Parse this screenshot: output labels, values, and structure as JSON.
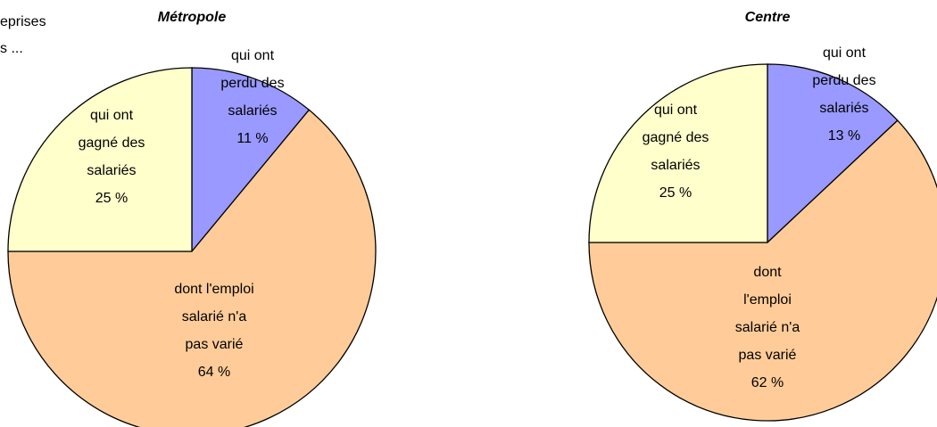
{
  "header": [
    "eprises",
    "s ..."
  ],
  "chart_data": [
    {
      "type": "pie",
      "title": "Métropole",
      "labels": [
        [
          "qui ont",
          "perdu des",
          "salariés"
        ],
        [
          "dont l'emploi",
          "salarié n'a",
          "pas varié"
        ],
        [
          "qui ont",
          "gagné des",
          "salariés"
        ]
      ],
      "values": [
        11,
        64,
        25
      ],
      "value_labels": [
        "11 %",
        "64 %",
        "25 %"
      ],
      "colors": [
        "#9999ff",
        "#ffcc99",
        "#ffffcc"
      ]
    },
    {
      "type": "pie",
      "title": "Centre",
      "labels": [
        [
          "qui ont",
          "perdu des",
          "salariés"
        ],
        [
          "dont",
          "l'emploi",
          "salarié n'a",
          "pas varié"
        ],
        [
          "qui ont",
          "gagné des",
          "salariés"
        ]
      ],
      "values": [
        13,
        62,
        25
      ],
      "value_labels": [
        "13 %",
        "62 %",
        "25 %"
      ],
      "colors": [
        "#9999ff",
        "#ffcc99",
        "#ffffcc"
      ]
    }
  ]
}
